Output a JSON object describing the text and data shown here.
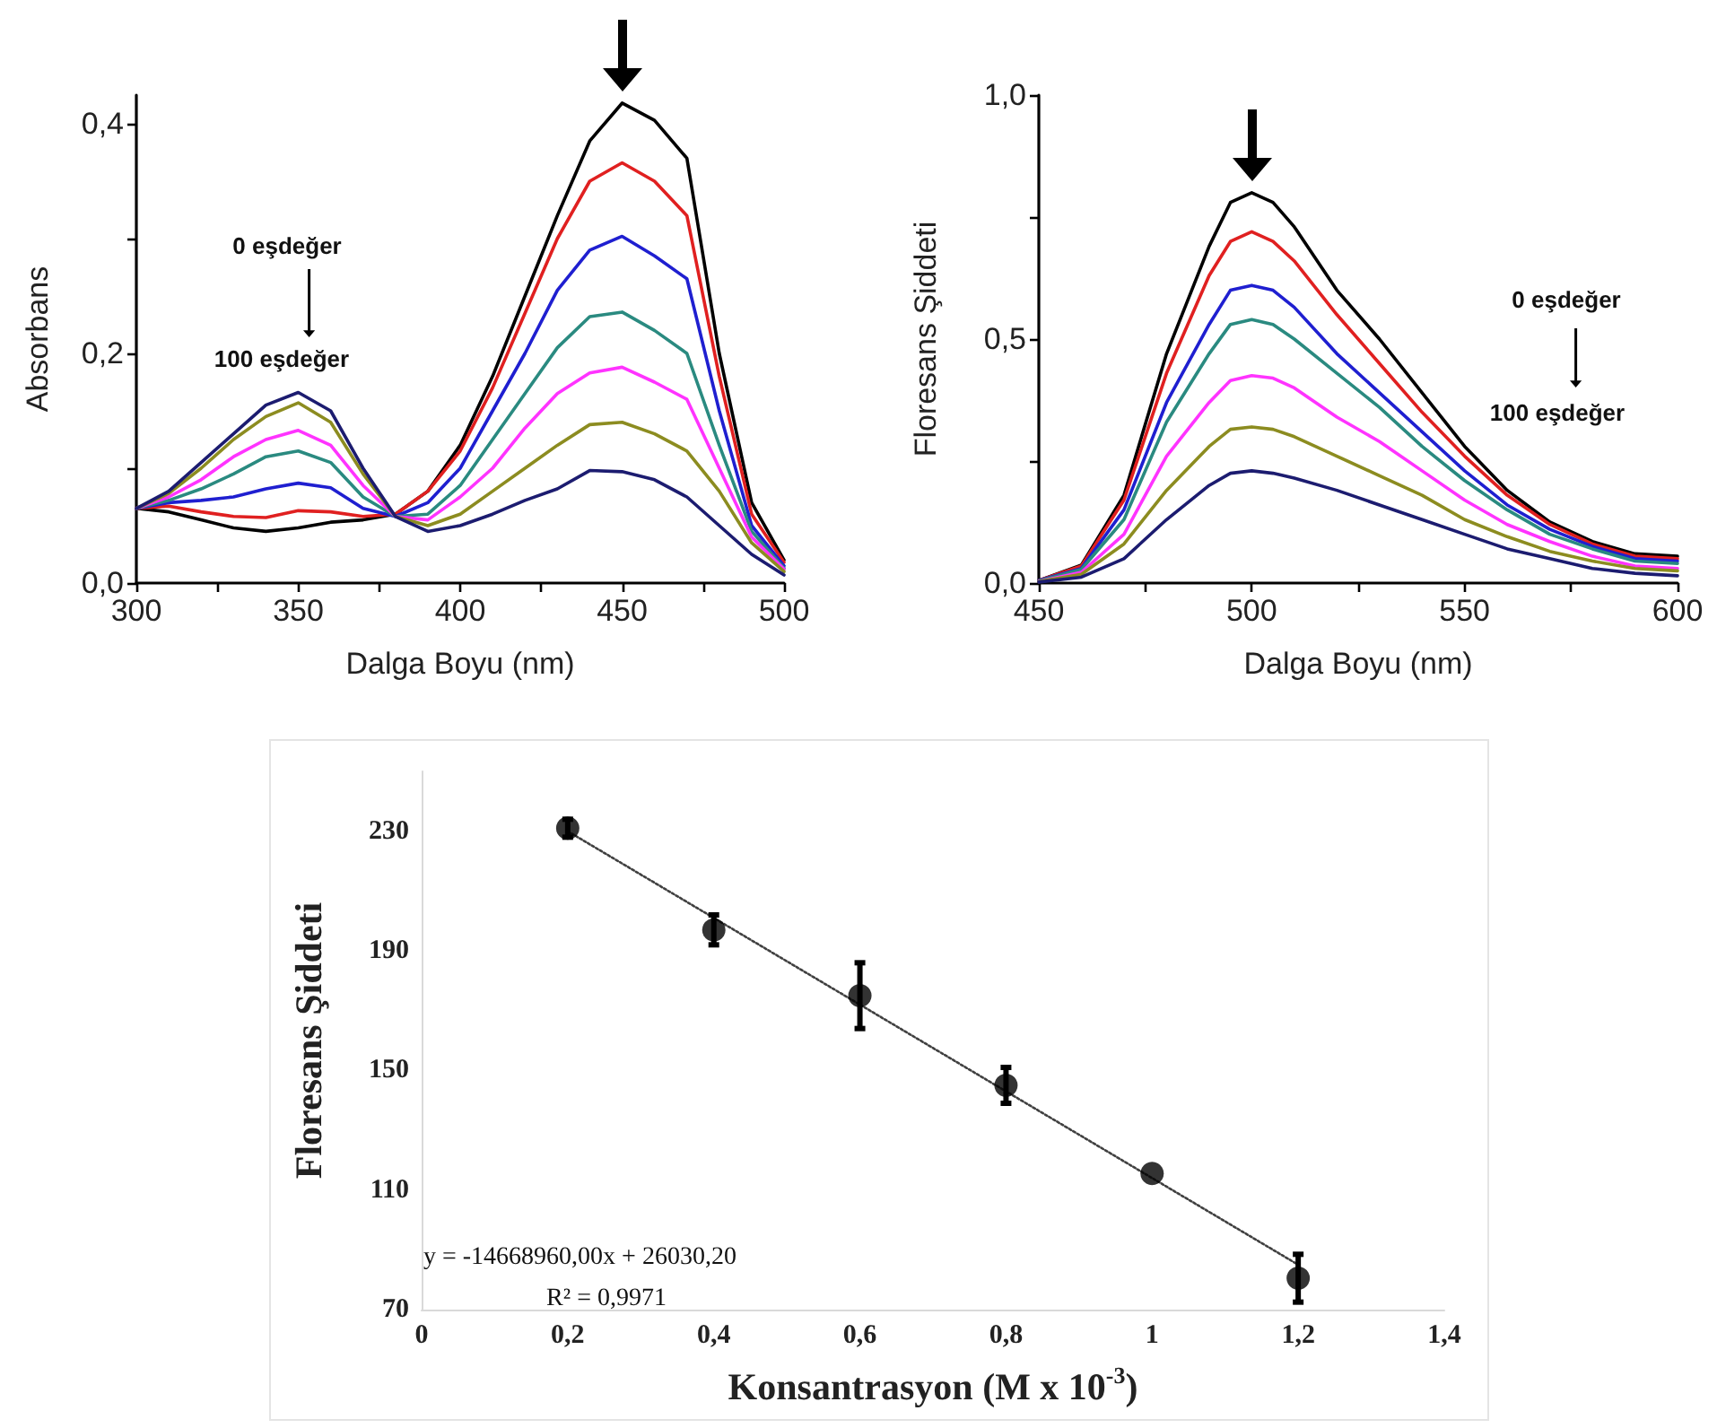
{
  "chart_data": [
    {
      "type": "line",
      "xlabel": "Dalga Boyu (nm)",
      "ylabel": "Absorbans",
      "marker": "none",
      "line_style": "solid",
      "x": [
        300,
        310,
        320,
        330,
        340,
        350,
        360,
        370,
        380,
        390,
        400,
        410,
        420,
        430,
        440,
        450,
        460,
        470,
        480,
        490,
        500
      ],
      "series": [
        {
          "color": "#000000",
          "values": [
            0.065,
            0.062,
            0.055,
            0.048,
            0.045,
            0.048,
            0.053,
            0.055,
            0.06,
            0.08,
            0.12,
            0.18,
            0.25,
            0.32,
            0.385,
            0.418,
            0.403,
            0.37,
            0.2,
            0.07,
            0.02
          ]
        },
        {
          "color": "#e02020",
          "values": [
            0.065,
            0.067,
            0.062,
            0.058,
            0.057,
            0.063,
            0.062,
            0.058,
            0.06,
            0.08,
            0.115,
            0.17,
            0.235,
            0.3,
            0.35,
            0.366,
            0.35,
            0.32,
            0.18,
            0.06,
            0.018
          ]
        },
        {
          "color": "#1f1fd0",
          "values": [
            0.065,
            0.07,
            0.072,
            0.075,
            0.082,
            0.087,
            0.083,
            0.065,
            0.058,
            0.07,
            0.1,
            0.15,
            0.2,
            0.255,
            0.29,
            0.302,
            0.285,
            0.265,
            0.15,
            0.05,
            0.015
          ]
        },
        {
          "color": "#2a8a80",
          "values": [
            0.065,
            0.072,
            0.082,
            0.095,
            0.11,
            0.115,
            0.105,
            0.075,
            0.058,
            0.06,
            0.085,
            0.125,
            0.165,
            0.205,
            0.232,
            0.236,
            0.22,
            0.2,
            0.12,
            0.045,
            0.013
          ]
        },
        {
          "color": "#ff33ff",
          "values": [
            0.065,
            0.075,
            0.09,
            0.11,
            0.125,
            0.133,
            0.12,
            0.085,
            0.058,
            0.055,
            0.075,
            0.1,
            0.135,
            0.165,
            0.183,
            0.188,
            0.175,
            0.16,
            0.1,
            0.04,
            0.012
          ]
        },
        {
          "color": "#8c8c20",
          "values": [
            0.065,
            0.078,
            0.1,
            0.125,
            0.145,
            0.157,
            0.14,
            0.095,
            0.058,
            0.05,
            0.06,
            0.08,
            0.1,
            0.12,
            0.138,
            0.14,
            0.13,
            0.115,
            0.08,
            0.035,
            0.01
          ]
        },
        {
          "color": "#1c1c70",
          "values": [
            0.065,
            0.08,
            0.105,
            0.13,
            0.155,
            0.166,
            0.15,
            0.1,
            0.058,
            0.045,
            0.05,
            0.06,
            0.072,
            0.082,
            0.098,
            0.097,
            0.09,
            0.075,
            0.05,
            0.025,
            0.007
          ]
        }
      ],
      "xlim": [
        300,
        500
      ],
      "xticks": [
        300,
        {
          "value": 325,
          "label": null
        },
        350,
        {
          "value": 375,
          "label": null
        },
        400,
        {
          "value": 425,
          "label": null
        },
        450,
        {
          "value": 475,
          "label": null
        },
        500
      ],
      "ylim": [
        0,
        0.425
      ],
      "yticks": [
        {
          "value": 0,
          "label": "0,0"
        },
        {
          "value": 0.1,
          "label": null
        },
        {
          "value": 0.2,
          "label": "0,2"
        },
        {
          "value": 0.3,
          "label": null
        },
        {
          "value": 0.4,
          "label": "0,4"
        }
      ],
      "annotations": [
        "0 eşdeğer",
        "100 eşdeğer"
      ]
    },
    {
      "type": "line",
      "xlabel": "Dalga Boyu (nm)",
      "ylabel": "Floresans Şiddeti",
      "marker": "none",
      "line_style": "solid",
      "x": [
        450,
        460,
        470,
        480,
        490,
        495,
        500,
        505,
        510,
        520,
        530,
        540,
        550,
        560,
        570,
        580,
        590,
        600
      ],
      "series": [
        {
          "color": "#000000",
          "values": [
            0.005,
            0.037,
            0.18,
            0.47,
            0.69,
            0.78,
            0.8,
            0.78,
            0.73,
            0.6,
            0.5,
            0.39,
            0.28,
            0.19,
            0.125,
            0.085,
            0.06,
            0.055
          ]
        },
        {
          "color": "#e02020",
          "values": [
            0.005,
            0.035,
            0.17,
            0.43,
            0.63,
            0.7,
            0.72,
            0.7,
            0.66,
            0.55,
            0.45,
            0.35,
            0.26,
            0.18,
            0.12,
            0.08,
            0.055,
            0.05
          ]
        },
        {
          "color": "#1f1fd0",
          "values": [
            0.005,
            0.03,
            0.15,
            0.37,
            0.53,
            0.6,
            0.61,
            0.6,
            0.565,
            0.47,
            0.39,
            0.31,
            0.23,
            0.16,
            0.11,
            0.075,
            0.05,
            0.045
          ]
        },
        {
          "color": "#2a8a80",
          "values": [
            0.004,
            0.028,
            0.13,
            0.33,
            0.47,
            0.53,
            0.54,
            0.53,
            0.5,
            0.43,
            0.36,
            0.28,
            0.21,
            0.15,
            0.1,
            0.07,
            0.045,
            0.04
          ]
        },
        {
          "color": "#ff33ff",
          "values": [
            0.003,
            0.022,
            0.1,
            0.26,
            0.37,
            0.415,
            0.425,
            0.42,
            0.4,
            0.34,
            0.29,
            0.23,
            0.17,
            0.12,
            0.085,
            0.055,
            0.035,
            0.03
          ]
        },
        {
          "color": "#8c8c20",
          "values": [
            0.003,
            0.018,
            0.08,
            0.19,
            0.28,
            0.315,
            0.32,
            0.315,
            0.3,
            0.26,
            0.22,
            0.18,
            0.13,
            0.095,
            0.065,
            0.045,
            0.03,
            0.025
          ]
        },
        {
          "color": "#1c1c70",
          "values": [
            0.002,
            0.012,
            0.05,
            0.13,
            0.2,
            0.225,
            0.23,
            0.225,
            0.215,
            0.19,
            0.16,
            0.13,
            0.1,
            0.07,
            0.05,
            0.03,
            0.02,
            0.015
          ]
        }
      ],
      "xlim": [
        450,
        600
      ],
      "xticks": [
        450,
        {
          "value": 475,
          "label": null
        },
        500,
        {
          "value": 525,
          "label": null
        },
        550,
        {
          "value": 575,
          "label": null
        },
        600
      ],
      "ylim": [
        0,
        1
      ],
      "yticks": [
        {
          "value": 0,
          "label": "0,0"
        },
        {
          "value": 0.25,
          "label": null
        },
        {
          "value": 0.5,
          "label": "0,5"
        },
        {
          "value": 0.75,
          "label": null
        },
        {
          "value": 1,
          "label": "1,0"
        }
      ],
      "annotations": [
        "0 eşdeğer",
        "100 eşdeğer"
      ]
    },
    {
      "type": "scatter",
      "xlabel": "Konsantrasyon (M x 10$^{-3}$)",
      "ylabel": "Floresans Şiddeti",
      "marker": "circle",
      "series": [
        {
          "color": "#000000",
          "x": [
            0.2,
            0.4,
            0.6,
            0.8,
            1,
            1.2
          ],
          "values": [
            231,
            197,
            175,
            145,
            115.5,
            80.5
          ],
          "errors": [
            3,
            5,
            11,
            6,
            null,
            8
          ]
        },
        {
          "type": "line",
          "color": "#404040",
          "marker": "none",
          "line_style": "dotted",
          "x": [
            0.2,
            1.2
          ],
          "values": [
            230,
            85
          ]
        }
      ],
      "xlim": [
        0,
        1.4
      ],
      "xticks": [
        0,
        {
          "value": 0.2,
          "label": "0,2"
        },
        {
          "value": 0.4,
          "label": "0,4"
        },
        {
          "value": 0.6,
          "label": "0,6"
        },
        {
          "value": 0.8,
          "label": "0,8"
        },
        1,
        {
          "value": 1.2,
          "label": "1,2"
        },
        {
          "value": 1.4,
          "label": "1,4"
        }
      ],
      "ylim": [
        70,
        250
      ],
      "yticks": [
        70,
        110,
        150,
        190,
        230
      ],
      "annotations": [
        "y = -14668960,00x + 26030,20",
        "R² = 0,9971"
      ]
    }
  ]
}
